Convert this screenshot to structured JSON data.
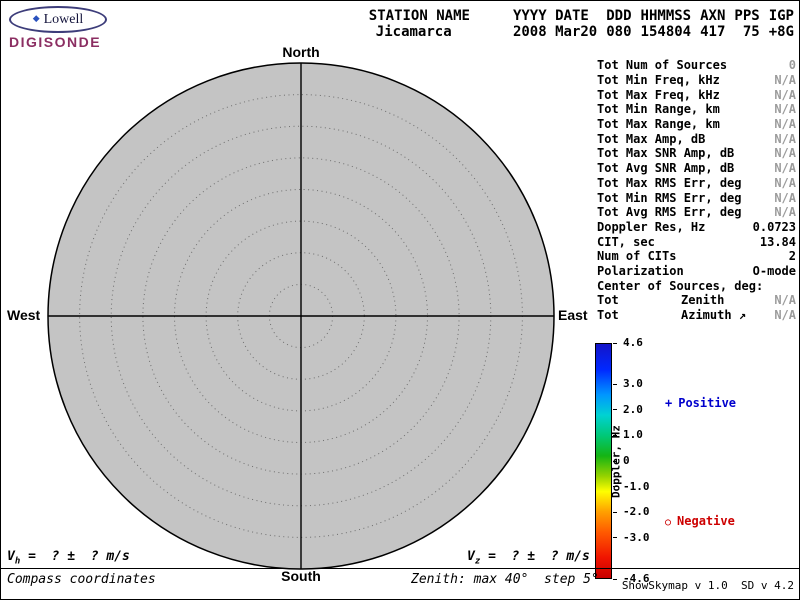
{
  "colors": {
    "muted": "#9c9c9c",
    "positive": "#0000cd",
    "negative": "#cd0000",
    "skymap-fill": "#c4c4c4",
    "logo-oval": "#3d3d7a",
    "logo-product": "#8b2e62"
  },
  "logo": {
    "mark": "◆",
    "brand": "Lowell",
    "product": "DIGISONDE"
  },
  "header": {
    "columns": [
      {
        "label": "STATION NAME",
        "value": "Jicamarca"
      },
      {
        "label": "YYYY DATE",
        "value": "2008 Mar20"
      },
      {
        "label": "DDD",
        "value": "080"
      },
      {
        "label": "HHMMSS",
        "value": "154804"
      },
      {
        "label": "AXN",
        "value": "417"
      },
      {
        "label": "PPS",
        "value": "75",
        "value_align": "right"
      },
      {
        "label": "IGP",
        "value": "+8G"
      }
    ]
  },
  "skymap": {
    "north": "North",
    "south": "South",
    "west": "West",
    "east": "East",
    "max_zenith_deg": 40,
    "ring_step_deg": 5
  },
  "stats": {
    "rows": [
      {
        "label": "Tot Num of Sources",
        "value": "0",
        "muted": true
      },
      {
        "label": "Tot Min Freq, kHz",
        "value": "N/A",
        "muted": true
      },
      {
        "label": "Tot Max Freq, kHz",
        "value": "N/A",
        "muted": true
      },
      {
        "label": "Tot Min Range, km",
        "value": "N/A",
        "muted": true
      },
      {
        "label": "Tot Max Range, km",
        "value": "N/A",
        "muted": true
      },
      {
        "label": "Tot Max Amp, dB",
        "value": "N/A",
        "muted": true
      },
      {
        "label": "Tot Max SNR Amp, dB",
        "value": "N/A",
        "muted": true
      },
      {
        "label": "Tot Avg SNR Amp, dB",
        "value": "N/A",
        "muted": true
      },
      {
        "label": "Tot Max RMS Err, deg",
        "value": "N/A",
        "muted": true
      },
      {
        "label": "Tot Min RMS Err, deg",
        "value": "N/A",
        "muted": true
      },
      {
        "label": "Tot Avg RMS Err, deg",
        "value": "N/A",
        "muted": true
      },
      {
        "label": "Doppler Res, Hz",
        "value": "0.0723",
        "muted": false
      },
      {
        "label": "CIT, sec",
        "value": "13.84",
        "muted": false
      },
      {
        "label": "Num of CITs",
        "value": "2",
        "muted": false
      },
      {
        "label": "Polarization",
        "value": "O-mode",
        "muted": false
      },
      {
        "label": "Center of Sources, deg:",
        "value": "",
        "muted": false
      },
      {
        "label": "Tot",
        "sublabel": "Zenith",
        "value": "N/A",
        "muted": true
      },
      {
        "label": "Tot",
        "sublabel": "Azimuth ↗",
        "value": "N/A",
        "muted": true
      }
    ]
  },
  "colorbar": {
    "title": "Doppler, Hz",
    "max": 4.6,
    "min": -4.6,
    "ticks": [
      {
        "label": "4.6",
        "value": 4.6
      },
      {
        "label": "3.0",
        "value": 3.0
      },
      {
        "label": "2.0",
        "value": 2.0
      },
      {
        "label": "1.0",
        "value": 1.0
      },
      {
        "label": "0",
        "value": 0
      },
      {
        "label": "-1.0",
        "value": -1.0
      },
      {
        "label": "-2.0",
        "value": -2.0
      },
      {
        "label": "-3.0",
        "value": -3.0
      },
      {
        "label": "-4.6",
        "value": -4.6
      }
    ],
    "stops": [
      {
        "value": 4.6,
        "color": "#1414c8"
      },
      {
        "value": 3.6,
        "color": "#0028ff"
      },
      {
        "value": 2.6,
        "color": "#0096ff"
      },
      {
        "value": 1.8,
        "color": "#00d2d2"
      },
      {
        "value": 1.0,
        "color": "#00c878"
      },
      {
        "value": 0.2,
        "color": "#14b414"
      },
      {
        "value": -0.6,
        "color": "#96d200"
      },
      {
        "value": -1.2,
        "color": "#ffff00"
      },
      {
        "value": -2.0,
        "color": "#ffa000"
      },
      {
        "value": -2.8,
        "color": "#ff5a00"
      },
      {
        "value": -3.8,
        "color": "#f01400"
      },
      {
        "value": -4.6,
        "color": "#c80000"
      }
    ]
  },
  "legend": {
    "positive_symbol": "+",
    "positive_label": "Positive",
    "negative_symbol": "○",
    "negative_label": "Negative"
  },
  "footer": {
    "vh_prefix": "V",
    "vh_sub": "h",
    "vh_rest": " =  ? ±  ? m/s",
    "vz_prefix": "V",
    "vz_sub": "z",
    "vz_rest": " =  ? ±  ? m/s",
    "coordinates_note": "Compass coordinates",
    "zenith_note": "Zenith: max 40°  step 5°",
    "version": "ShowSkymap v 1.0  SD v 4.2"
  }
}
